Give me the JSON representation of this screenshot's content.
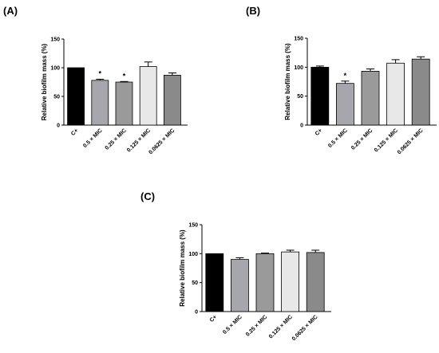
{
  "chart_data": [
    {
      "panel": "(A)",
      "type": "bar",
      "ylabel": "Relative biofilm mass (%)",
      "xlabel": "",
      "ylim": [
        0,
        150
      ],
      "yticks": [
        0,
        50,
        100,
        150
      ],
      "categories": [
        "C+",
        "0.5 × MIC",
        "0.25 × MIC",
        "0.125 × MIC",
        "0.0625 × MIC"
      ],
      "values": [
        100,
        78,
        75,
        102,
        87
      ],
      "errors": [
        0,
        2,
        1,
        8,
        4
      ],
      "significance": [
        "",
        "*",
        "*",
        "",
        ""
      ],
      "colors": [
        "#000000",
        "#a6a6ad",
        "#9a9a9a",
        "#e8e8e8",
        "#8a8a8a"
      ]
    },
    {
      "panel": "(B)",
      "type": "bar",
      "ylabel": "Relative biofilm mass (%)",
      "xlabel": "",
      "ylim": [
        0,
        150
      ],
      "yticks": [
        0,
        50,
        100,
        150
      ],
      "categories": [
        "C+",
        "0.5 × MIC",
        "0.25 × MIC",
        "0.125 × MIC",
        "0.0625 × MIC"
      ],
      "values": [
        100,
        72,
        93,
        107,
        114
      ],
      "errors": [
        2,
        4,
        4,
        6,
        4
      ],
      "significance": [
        "",
        "*",
        "",
        "",
        ""
      ],
      "colors": [
        "#000000",
        "#a6a6ad",
        "#9a9a9a",
        "#e8e8e8",
        "#8a8a8a"
      ]
    },
    {
      "panel": "(C)",
      "type": "bar",
      "ylabel": "Relative biofilm mass (%)",
      "xlabel": "",
      "ylim": [
        0,
        150
      ],
      "yticks": [
        0,
        50,
        100,
        150
      ],
      "categories": [
        "C+",
        "0.5 × MIC",
        "0.25 × MIC",
        "0.125 × MIC",
        "0.0625 × MIC"
      ],
      "values": [
        100,
        90,
        100,
        103,
        102
      ],
      "errors": [
        0,
        3,
        1,
        3,
        4
      ],
      "significance": [
        "",
        "",
        "",
        "",
        ""
      ],
      "colors": [
        "#000000",
        "#a6a6ad",
        "#9a9a9a",
        "#e8e8e8",
        "#8a8a8a"
      ]
    }
  ]
}
